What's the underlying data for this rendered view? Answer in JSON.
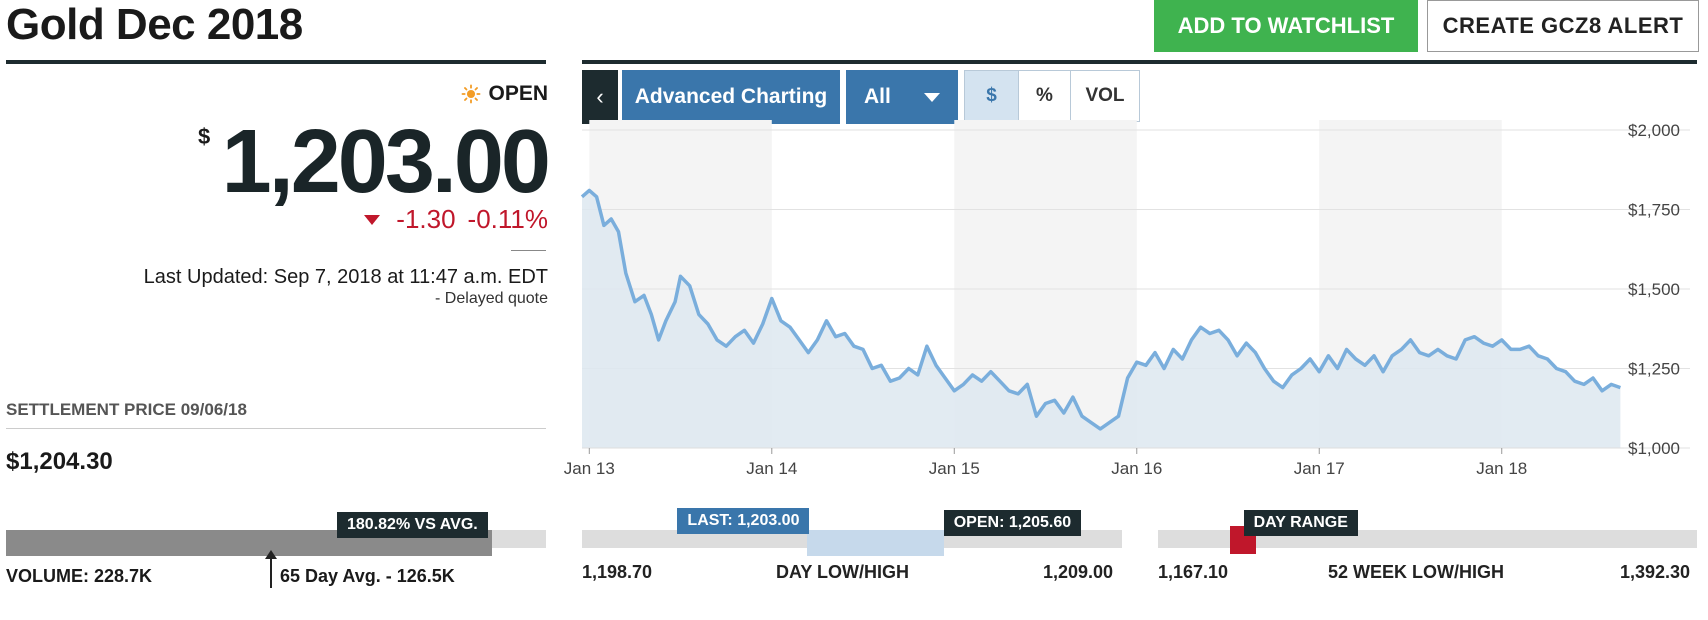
{
  "header": {
    "title": "Gold Dec 2018",
    "watchlist_label": "ADD TO WATCHLIST",
    "alert_label": "CREATE GCZ8 ALERT"
  },
  "quote": {
    "status": "OPEN",
    "currency_symbol": "$",
    "price": "1,203.00",
    "change": "-1.30",
    "change_pct": "-0.11%",
    "last_updated": "Last Updated: Sep 7, 2018 at 11:47 a.m. EDT",
    "delayed": "-  Delayed quote"
  },
  "settlement": {
    "label": "SETTLEMENT PRICE 09/06/18",
    "value": "$1,204.30"
  },
  "volume": {
    "vs_avg": "180.82% VS AVG.",
    "label": "VOLUME: 228.7K",
    "avg_label": "65 Day Avg. - 126.5K",
    "fill_fraction": 0.9
  },
  "toolbar": {
    "back": "‹",
    "advanced": "Advanced Charting",
    "range": "All",
    "usd": "$",
    "pct": "%",
    "vol": "VOL"
  },
  "colors": {
    "line": "#7aaedc",
    "area": "#dde7f0",
    "accent_blue": "#3a76ab",
    "green": "#3fb34f",
    "red": "#c0172b",
    "dark": "#1d2b2f"
  },
  "chart_data": {
    "type": "area",
    "x_tick_labels": [
      "Jan 13",
      "Jan 14",
      "Jan 15",
      "Jan 16",
      "Jan 17",
      "Jan 18"
    ],
    "y_tick_labels": [
      "$2,000",
      "$1,750",
      "$1,500",
      "$1,250",
      "$1,000"
    ],
    "ylim": [
      1000,
      2000
    ],
    "xlim": [
      2012.96,
      2018.67
    ],
    "grid": true,
    "x": [
      2012.96,
      2013.0,
      2013.04,
      2013.08,
      2013.12,
      2013.16,
      2013.2,
      2013.25,
      2013.3,
      2013.34,
      2013.38,
      2013.42,
      2013.47,
      2013.5,
      2013.55,
      2013.6,
      2013.65,
      2013.7,
      2013.75,
      2013.8,
      2013.85,
      2013.9,
      2013.95,
      2014.0,
      2014.05,
      2014.1,
      2014.15,
      2014.2,
      2014.25,
      2014.3,
      2014.35,
      2014.4,
      2014.45,
      2014.5,
      2014.55,
      2014.6,
      2014.65,
      2014.7,
      2014.75,
      2014.8,
      2014.85,
      2014.9,
      2014.95,
      2015.0,
      2015.05,
      2015.1,
      2015.15,
      2015.2,
      2015.25,
      2015.3,
      2015.35,
      2015.4,
      2015.45,
      2015.5,
      2015.55,
      2015.6,
      2015.65,
      2015.7,
      2015.75,
      2015.8,
      2015.85,
      2015.9,
      2015.95,
      2016.0,
      2016.05,
      2016.1,
      2016.15,
      2016.2,
      2016.25,
      2016.3,
      2016.35,
      2016.4,
      2016.45,
      2016.5,
      2016.55,
      2016.6,
      2016.65,
      2016.7,
      2016.75,
      2016.8,
      2016.85,
      2016.9,
      2016.95,
      2017.0,
      2017.05,
      2017.1,
      2017.15,
      2017.2,
      2017.25,
      2017.3,
      2017.35,
      2017.4,
      2017.45,
      2017.5,
      2017.55,
      2017.6,
      2017.65,
      2017.7,
      2017.75,
      2017.8,
      2017.85,
      2017.9,
      2017.95,
      2018.0,
      2018.05,
      2018.1,
      2018.15,
      2018.2,
      2018.25,
      2018.3,
      2018.35,
      2018.4,
      2018.45,
      2018.5,
      2018.55,
      2018.6,
      2018.65
    ],
    "values": [
      1790,
      1810,
      1790,
      1700,
      1720,
      1680,
      1550,
      1460,
      1480,
      1420,
      1340,
      1400,
      1460,
      1540,
      1510,
      1420,
      1390,
      1340,
      1320,
      1350,
      1370,
      1330,
      1390,
      1470,
      1400,
      1380,
      1340,
      1300,
      1340,
      1400,
      1350,
      1360,
      1320,
      1310,
      1250,
      1260,
      1210,
      1220,
      1250,
      1230,
      1320,
      1260,
      1220,
      1180,
      1200,
      1230,
      1210,
      1240,
      1210,
      1180,
      1170,
      1200,
      1100,
      1140,
      1150,
      1110,
      1160,
      1100,
      1080,
      1060,
      1080,
      1100,
      1220,
      1270,
      1260,
      1300,
      1250,
      1310,
      1280,
      1340,
      1380,
      1360,
      1370,
      1340,
      1290,
      1330,
      1300,
      1250,
      1210,
      1190,
      1230,
      1250,
      1280,
      1240,
      1290,
      1250,
      1310,
      1280,
      1260,
      1290,
      1240,
      1290,
      1310,
      1340,
      1300,
      1290,
      1310,
      1290,
      1280,
      1340,
      1350,
      1330,
      1320,
      1340,
      1310,
      1310,
      1320,
      1290,
      1280,
      1250,
      1240,
      1210,
      1200,
      1220,
      1180,
      1200,
      1190
    ]
  },
  "day_range": {
    "last_tag": "LAST: 1,203.00",
    "open_tag": "OPEN: 1,205.60",
    "low": "1,198.70",
    "label": "DAY LOW/HIGH",
    "high": "1,209.00",
    "low_value": 1198.7,
    "high_value": 1209.0,
    "last_value": 1203.0,
    "open_value": 1205.6
  },
  "week52": {
    "tag": "DAY RANGE",
    "low": "1,167.10",
    "label": "52 WEEK LOW/HIGH",
    "high": "1,392.30",
    "low_value": 1167.1,
    "high_value": 1392.3,
    "day_low_value": 1198.7,
    "day_high_value": 1209.0
  }
}
